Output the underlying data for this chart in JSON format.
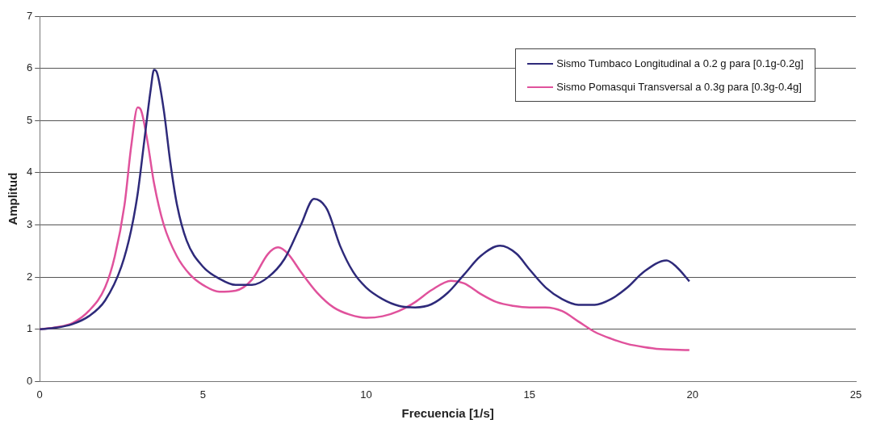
{
  "chart_data": {
    "type": "line",
    "xlabel": "Frecuencia [1/s]",
    "ylabel": "Amplitud",
    "xlim": [
      0,
      25
    ],
    "xticks": [
      0,
      5,
      10,
      15,
      20,
      25
    ],
    "ylim": [
      0,
      7
    ],
    "yticks": [
      0,
      1,
      2,
      3,
      4,
      5,
      6,
      7
    ],
    "grid": "y",
    "legend": "top right",
    "marker": "none",
    "line_style": "solid",
    "series": [
      {
        "name": "Sismo Tumbaco Longitudinal a 0.2 g para [0.1g-0.2g]",
        "color": "#2e2a7a",
        "x": [
          0,
          0.5,
          1,
          1.5,
          2,
          2.5,
          2.8,
          3.0,
          3.2,
          3.4,
          3.5,
          3.6,
          3.8,
          4.0,
          4.2,
          4.5,
          5,
          5.5,
          6,
          6.5,
          7,
          7.5,
          8,
          8.4,
          8.8,
          9.2,
          9.6,
          10,
          10.5,
          11,
          11.5,
          12,
          12.5,
          13,
          13.5,
          14.1,
          14.6,
          15,
          15.5,
          16,
          16.5,
          17,
          17.5,
          18,
          18.5,
          19.2,
          19.5,
          19.9
        ],
        "values": [
          1,
          1.03,
          1.1,
          1.25,
          1.55,
          2.2,
          2.9,
          3.6,
          4.6,
          5.6,
          5.97,
          5.9,
          5.2,
          4.2,
          3.4,
          2.7,
          2.2,
          1.97,
          1.85,
          1.85,
          2.0,
          2.35,
          3.0,
          3.5,
          3.3,
          2.6,
          2.1,
          1.8,
          1.58,
          1.45,
          1.42,
          1.48,
          1.7,
          2.05,
          2.4,
          2.6,
          2.45,
          2.15,
          1.8,
          1.58,
          1.47,
          1.47,
          1.58,
          1.8,
          2.1,
          2.32,
          2.2,
          1.92
        ]
      },
      {
        "name": "Sismo Pomasqui Transversal a 0.3g para [0.3g-0.4g]",
        "color": "#e0529c",
        "x": [
          0,
          0.5,
          1,
          1.5,
          2,
          2.3,
          2.6,
          2.8,
          3.0,
          3.1,
          3.3,
          3.5,
          3.8,
          4.2,
          4.6,
          5,
          5.5,
          6,
          6.5,
          7,
          7.3,
          7.6,
          8,
          8.5,
          9,
          9.5,
          10,
          10.5,
          11,
          11.5,
          12,
          12.6,
          13,
          13.5,
          14,
          14.5,
          15,
          15.5,
          16,
          16.5,
          17,
          17.5,
          18,
          18.5,
          19,
          19.9
        ],
        "values": [
          1,
          1.04,
          1.12,
          1.35,
          1.8,
          2.4,
          3.4,
          4.5,
          5.25,
          5.2,
          4.6,
          3.8,
          3.0,
          2.4,
          2.05,
          1.85,
          1.72,
          1.74,
          1.95,
          2.45,
          2.57,
          2.45,
          2.1,
          1.7,
          1.42,
          1.28,
          1.22,
          1.25,
          1.35,
          1.52,
          1.75,
          1.93,
          1.88,
          1.68,
          1.52,
          1.45,
          1.42,
          1.42,
          1.35,
          1.15,
          0.95,
          0.82,
          0.72,
          0.66,
          0.62,
          0.6
        ]
      }
    ]
  }
}
